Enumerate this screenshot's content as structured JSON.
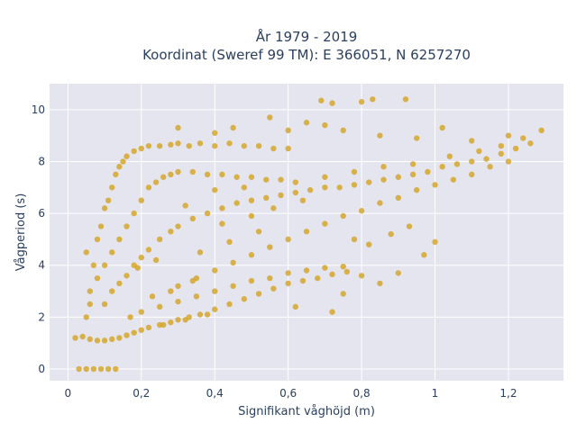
{
  "chart_data": {
    "type": "scatter",
    "title_line1": "År 1979 - 2019",
    "title_line2": "Koordinat (Sweref 99 TM): E 366051, N 6257270",
    "xlabel": "Signifikant våghöjd (m)",
    "ylabel": "Vågperiod (s)",
    "xlim": [
      -0.05,
      1.35
    ],
    "ylim": [
      -0.45,
      11
    ],
    "xticks": [
      0,
      0.2,
      0.4,
      0.6,
      0.8,
      1.0,
      1.2
    ],
    "xtick_labels": [
      "0",
      "0,2",
      "0,4",
      "0,6",
      "0,8",
      "1",
      "1,2"
    ],
    "yticks": [
      0,
      2,
      4,
      6,
      8,
      10
    ],
    "ytick_labels": [
      "0",
      "2",
      "4",
      "6",
      "8",
      "10"
    ],
    "grid": true,
    "legend": "none",
    "point_color": "#d4a21f",
    "plot_bg": "#e5e5f0",
    "series": [
      {
        "points": [
          [
            0.03,
            0
          ],
          [
            0.05,
            0
          ],
          [
            0.07,
            0
          ],
          [
            0.09,
            0
          ],
          [
            0.11,
            0
          ],
          [
            0.13,
            0
          ],
          [
            0.02,
            1.2
          ],
          [
            0.04,
            1.25
          ],
          [
            0.06,
            1.15
          ],
          [
            0.08,
            1.1
          ],
          [
            0.1,
            1.1
          ],
          [
            0.12,
            1.15
          ],
          [
            0.14,
            1.2
          ],
          [
            0.16,
            1.3
          ],
          [
            0.18,
            1.4
          ],
          [
            0.2,
            1.5
          ],
          [
            0.22,
            1.6
          ],
          [
            0.25,
            1.7
          ],
          [
            0.28,
            1.8
          ],
          [
            0.3,
            1.9
          ],
          [
            0.33,
            2.0
          ],
          [
            0.36,
            2.1
          ],
          [
            0.4,
            2.3
          ],
          [
            0.44,
            2.5
          ],
          [
            0.48,
            2.7
          ],
          [
            0.52,
            2.9
          ],
          [
            0.56,
            3.1
          ],
          [
            0.6,
            3.3
          ],
          [
            0.64,
            3.4
          ],
          [
            0.68,
            3.5
          ],
          [
            0.72,
            3.65
          ],
          [
            0.76,
            3.75
          ],
          [
            0.05,
            2
          ],
          [
            0.06,
            3
          ],
          [
            0.07,
            4
          ],
          [
            0.08,
            5
          ],
          [
            0.09,
            5.5
          ],
          [
            0.05,
            4.5
          ],
          [
            0.06,
            2.5
          ],
          [
            0.1,
            6.2
          ],
          [
            0.11,
            6.5
          ],
          [
            0.12,
            7
          ],
          [
            0.13,
            7.5
          ],
          [
            0.14,
            7.8
          ],
          [
            0.15,
            8
          ],
          [
            0.16,
            8.2
          ],
          [
            0.18,
            8.4
          ],
          [
            0.2,
            8.5
          ],
          [
            0.22,
            8.6
          ],
          [
            0.25,
            8.6
          ],
          [
            0.28,
            8.65
          ],
          [
            0.3,
            8.7
          ],
          [
            0.33,
            8.6
          ],
          [
            0.36,
            8.7
          ],
          [
            0.4,
            8.6
          ],
          [
            0.44,
            8.7
          ],
          [
            0.48,
            8.6
          ],
          [
            0.52,
            8.6
          ],
          [
            0.56,
            8.5
          ],
          [
            0.6,
            8.5
          ],
          [
            0.08,
            3.5
          ],
          [
            0.1,
            4
          ],
          [
            0.12,
            4.5
          ],
          [
            0.14,
            5
          ],
          [
            0.16,
            5.5
          ],
          [
            0.18,
            6
          ],
          [
            0.2,
            6.5
          ],
          [
            0.22,
            7
          ],
          [
            0.24,
            7.2
          ],
          [
            0.26,
            7.4
          ],
          [
            0.28,
            7.5
          ],
          [
            0.3,
            7.6
          ],
          [
            0.34,
            7.6
          ],
          [
            0.38,
            7.5
          ],
          [
            0.42,
            7.5
          ],
          [
            0.46,
            7.4
          ],
          [
            0.5,
            7.4
          ],
          [
            0.54,
            7.3
          ],
          [
            0.58,
            7.3
          ],
          [
            0.1,
            2.5
          ],
          [
            0.12,
            3
          ],
          [
            0.14,
            3.3
          ],
          [
            0.16,
            3.6
          ],
          [
            0.18,
            4
          ],
          [
            0.2,
            4.3
          ],
          [
            0.22,
            4.6
          ],
          [
            0.25,
            5
          ],
          [
            0.28,
            5.3
          ],
          [
            0.3,
            5.5
          ],
          [
            0.34,
            5.8
          ],
          [
            0.38,
            6.0
          ],
          [
            0.42,
            6.2
          ],
          [
            0.46,
            6.4
          ],
          [
            0.5,
            6.5
          ],
          [
            0.54,
            6.6
          ],
          [
            0.58,
            6.7
          ],
          [
            0.62,
            6.8
          ],
          [
            0.66,
            6.9
          ],
          [
            0.7,
            7.0
          ],
          [
            0.74,
            7.0
          ],
          [
            0.78,
            7.1
          ],
          [
            0.82,
            7.2
          ],
          [
            0.86,
            7.3
          ],
          [
            0.9,
            7.4
          ],
          [
            0.94,
            7.5
          ],
          [
            0.98,
            7.6
          ],
          [
            1.02,
            7.8
          ],
          [
            1.06,
            7.9
          ],
          [
            1.1,
            8.0
          ],
          [
            1.14,
            8.1
          ],
          [
            1.18,
            8.3
          ],
          [
            1.22,
            8.5
          ],
          [
            1.26,
            8.7
          ],
          [
            1.29,
            9.2
          ],
          [
            0.3,
            3.2
          ],
          [
            0.35,
            3.5
          ],
          [
            0.4,
            3.8
          ],
          [
            0.45,
            4.1
          ],
          [
            0.5,
            4.4
          ],
          [
            0.55,
            4.7
          ],
          [
            0.6,
            5.0
          ],
          [
            0.65,
            5.3
          ],
          [
            0.7,
            5.6
          ],
          [
            0.75,
            5.9
          ],
          [
            0.8,
            6.1
          ],
          [
            0.85,
            6.4
          ],
          [
            0.9,
            6.6
          ],
          [
            0.95,
            6.9
          ],
          [
            1.0,
            7.1
          ],
          [
            1.05,
            7.3
          ],
          [
            1.1,
            7.5
          ],
          [
            1.15,
            7.8
          ],
          [
            1.2,
            8.0
          ],
          [
            0.2,
            2.2
          ],
          [
            0.25,
            2.4
          ],
          [
            0.3,
            2.6
          ],
          [
            0.35,
            2.8
          ],
          [
            0.4,
            3.0
          ],
          [
            0.45,
            3.2
          ],
          [
            0.5,
            3.4
          ],
          [
            0.55,
            3.5
          ],
          [
            0.6,
            3.7
          ],
          [
            0.65,
            3.8
          ],
          [
            0.7,
            3.9
          ],
          [
            0.75,
            3.95
          ],
          [
            0.69,
            10.35
          ],
          [
            0.72,
            10.25
          ],
          [
            0.8,
            10.3
          ],
          [
            0.83,
            10.4
          ],
          [
            0.92,
            10.4
          ],
          [
            0.55,
            9.7
          ],
          [
            0.65,
            9.5
          ],
          [
            0.3,
            9.3
          ],
          [
            0.7,
            9.4
          ],
          [
            0.75,
            9.2
          ],
          [
            0.45,
            9.3
          ],
          [
            0.6,
            9.2
          ],
          [
            1.02,
            9.3
          ],
          [
            0.85,
            9.0
          ],
          [
            0.95,
            8.9
          ],
          [
            1.1,
            8.8
          ],
          [
            1.2,
            9.0
          ],
          [
            0.4,
            9.1
          ],
          [
            0.97,
            4.4
          ],
          [
            1.0,
            4.9
          ],
          [
            0.82,
            4.8
          ],
          [
            0.88,
            5.2
          ],
          [
            0.93,
            5.5
          ],
          [
            0.78,
            5.0
          ],
          [
            0.85,
            3.3
          ],
          [
            0.9,
            3.7
          ],
          [
            0.72,
            2.2
          ],
          [
            0.62,
            2.4
          ],
          [
            0.75,
            2.9
          ],
          [
            0.8,
            3.6
          ],
          [
            0.26,
            1.7
          ],
          [
            0.32,
            1.9
          ],
          [
            0.38,
            2.1
          ],
          [
            0.17,
            2.0
          ],
          [
            0.23,
            2.8
          ],
          [
            0.28,
            3.0
          ],
          [
            0.34,
            3.4
          ],
          [
            0.19,
            3.9
          ],
          [
            0.24,
            4.2
          ],
          [
            0.36,
            4.5
          ],
          [
            0.44,
            4.9
          ],
          [
            0.52,
            5.3
          ],
          [
            0.42,
            5.6
          ],
          [
            0.5,
            5.9
          ],
          [
            0.56,
            6.2
          ],
          [
            0.64,
            6.5
          ],
          [
            0.32,
            6.3
          ],
          [
            0.4,
            6.9
          ],
          [
            0.48,
            7.0
          ],
          [
            0.62,
            7.2
          ],
          [
            0.7,
            7.4
          ],
          [
            0.78,
            7.6
          ],
          [
            0.86,
            7.8
          ],
          [
            0.94,
            7.9
          ],
          [
            1.04,
            8.2
          ],
          [
            1.12,
            8.4
          ],
          [
            1.18,
            8.6
          ],
          [
            1.24,
            8.9
          ]
        ]
      }
    ]
  }
}
